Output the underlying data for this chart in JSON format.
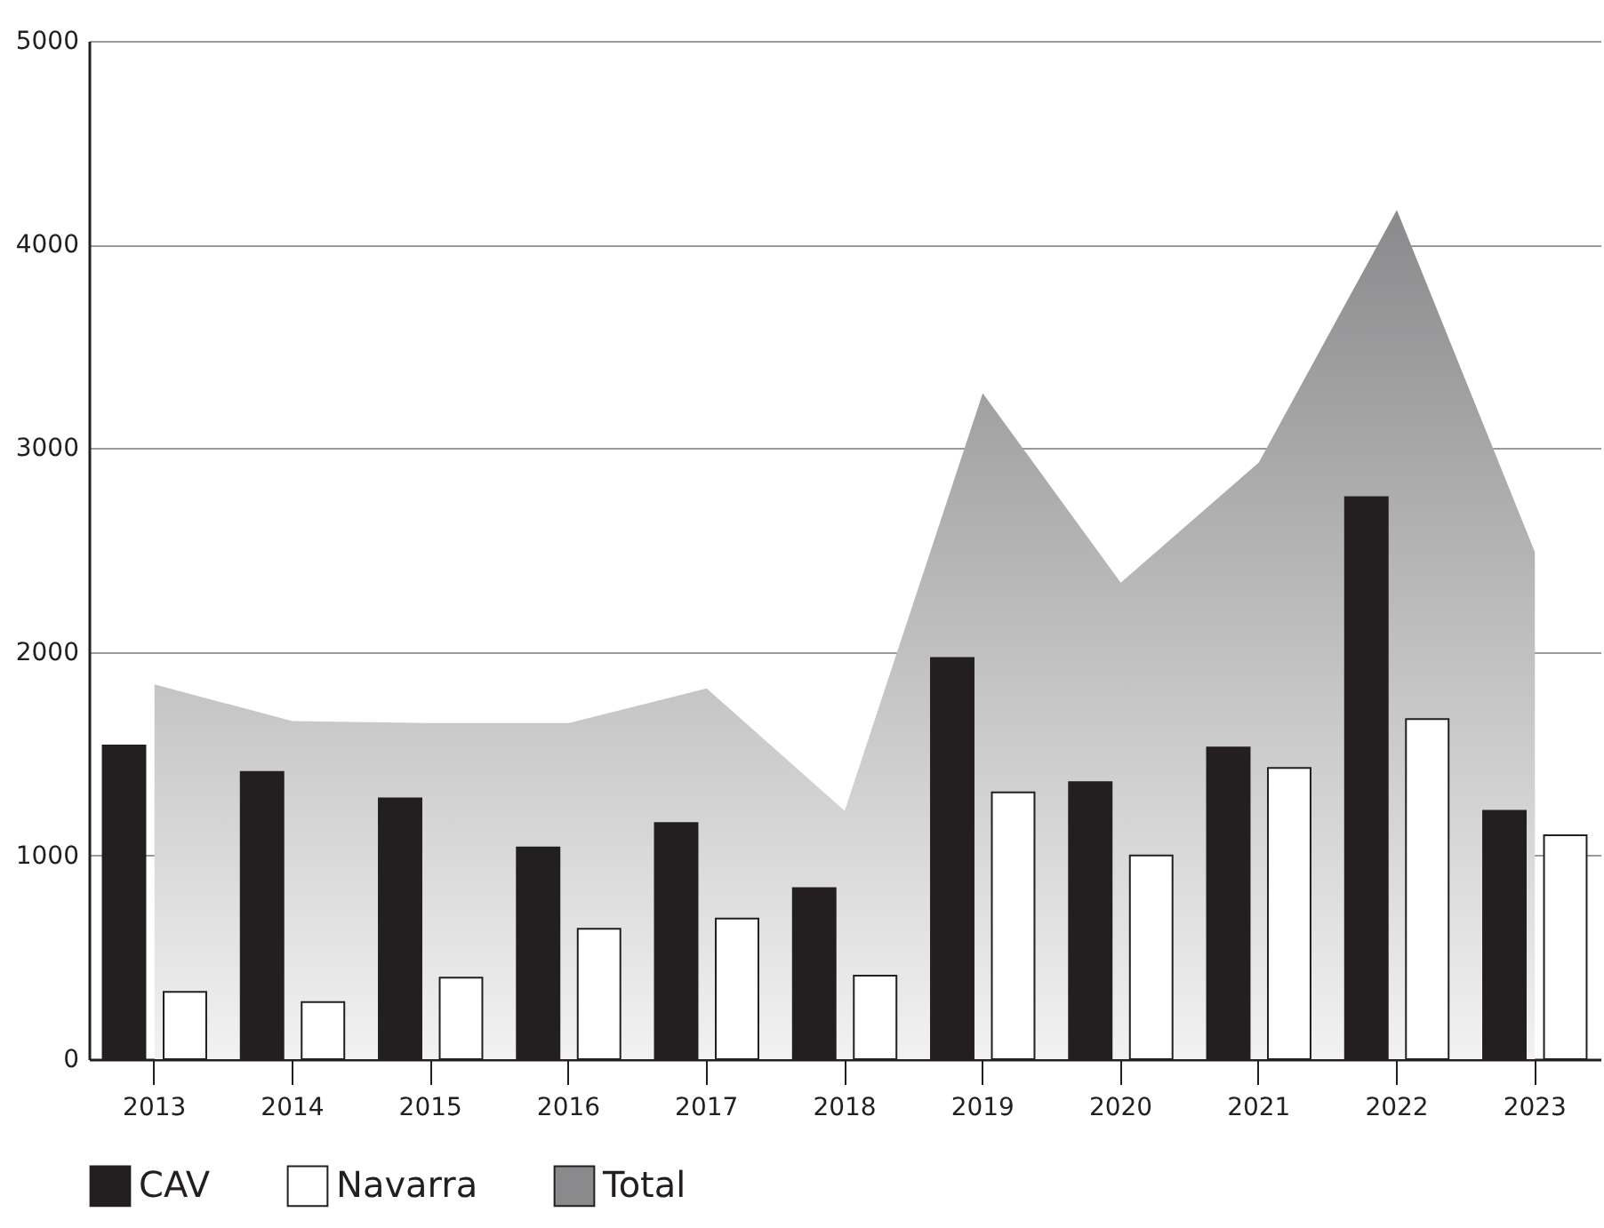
{
  "chart_data": {
    "type": "bar",
    "categories": [
      "2013",
      "2014",
      "2015",
      "2016",
      "2017",
      "2018",
      "2019",
      "2020",
      "2021",
      "2022",
      "2023"
    ],
    "series": [
      {
        "name": "CAV",
        "color": "#231f20",
        "values": [
          1540,
          1410,
          1280,
          1040,
          1160,
          840,
          1970,
          1360,
          1530,
          2760,
          1220
        ]
      },
      {
        "name": "Navarra",
        "color": "#ffffff",
        "values": [
          330,
          280,
          400,
          640,
          690,
          410,
          1310,
          1000,
          1430,
          1670,
          1100
        ]
      },
      {
        "name": "Total",
        "type": "area",
        "color": "#8a8a8c",
        "values": [
          1840,
          1660,
          1650,
          1650,
          1820,
          1220,
          3270,
          2340,
          2930,
          4170,
          2490
        ]
      }
    ],
    "ylim": [
      0,
      5000
    ],
    "yticks": [
      0,
      1000,
      2000,
      3000,
      4000,
      5000
    ],
    "grid": "y",
    "legend": "bottom left"
  }
}
